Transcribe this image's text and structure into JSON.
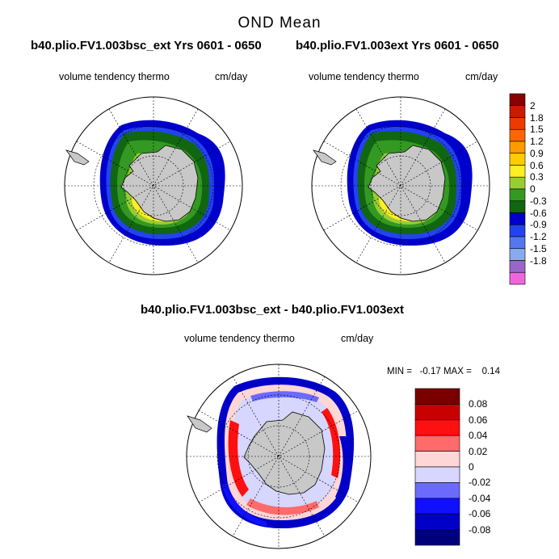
{
  "main_title": "OND Mean",
  "panels": [
    {
      "case": "b40.plio.FV1.003bsc_ext  Yrs 0601 - 0650",
      "variable": "volume tendency thermo",
      "units": "cm/day"
    },
    {
      "case": "b40.plio.FV1.003ext  Yrs 0601 - 0650",
      "variable": "volume tendency thermo",
      "units": "cm/day"
    }
  ],
  "diff_panel": {
    "case": "b40.plio.FV1.003bsc_ext - b40.plio.FV1.003ext",
    "variable": "volume tendency thermo",
    "units": "cm/day",
    "min_max_text": "MIN =   -0.17 MAX =    0.14"
  },
  "colorbar_top": {
    "labels": [
      "2",
      "1.8",
      "1.5",
      "1.2",
      "0.9",
      "0.6",
      "0.3",
      "0",
      "-0.3",
      "-0.6",
      "-0.9",
      "-1.2",
      "-1.5",
      "-1.8"
    ],
    "colors": [
      "#8b0000",
      "#cc1a00",
      "#ee3a00",
      "#ff6600",
      "#ff9900",
      "#ffcc00",
      "#ffee22",
      "#99cc33",
      "#339922",
      "#116611",
      "#0000cc",
      "#2244ee",
      "#5577ee",
      "#88aaee",
      "#9966cc",
      "#ee66dd"
    ]
  },
  "colorbar_diff": {
    "labels": [
      "0.08",
      "0.06",
      "0.04",
      "0.02",
      "0",
      "-0.02",
      "-0.04",
      "-0.06",
      "-0.08"
    ],
    "colors": [
      "#7a0000",
      "#c80000",
      "#ff1010",
      "#ff6a6a",
      "#ffd6d6",
      "#d6d6ff",
      "#6a6aff",
      "#1010ff",
      "#0000c8",
      "#00007a"
    ]
  },
  "colors": {
    "land": "#c8c8c8",
    "ocean": "#ffffff"
  }
}
